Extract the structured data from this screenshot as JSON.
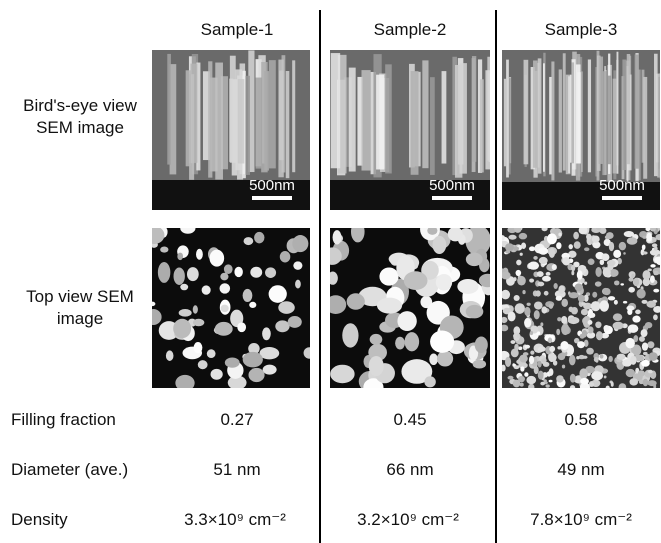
{
  "header": {
    "columns": [
      "Sample-1",
      "Sample-2",
      "Sample-3"
    ]
  },
  "image_rows": [
    {
      "label": "Bird's-eye view SEM image",
      "scale_bars": [
        "500nm",
        "500nm",
        "500nm"
      ]
    },
    {
      "label": "Top view SEM image"
    }
  ],
  "table": {
    "rows": [
      [
        "Filling fraction",
        "0.27",
        "0.45",
        "0.58"
      ],
      [
        "Diameter (ave.)",
        "51 nm",
        "66 nm",
        "49 nm"
      ],
      [
        "Density",
        "3.3×10⁹ cm⁻²",
        "3.2×10⁹ cm⁻²",
        "7.8×10⁹ cm⁻²"
      ]
    ]
  }
}
